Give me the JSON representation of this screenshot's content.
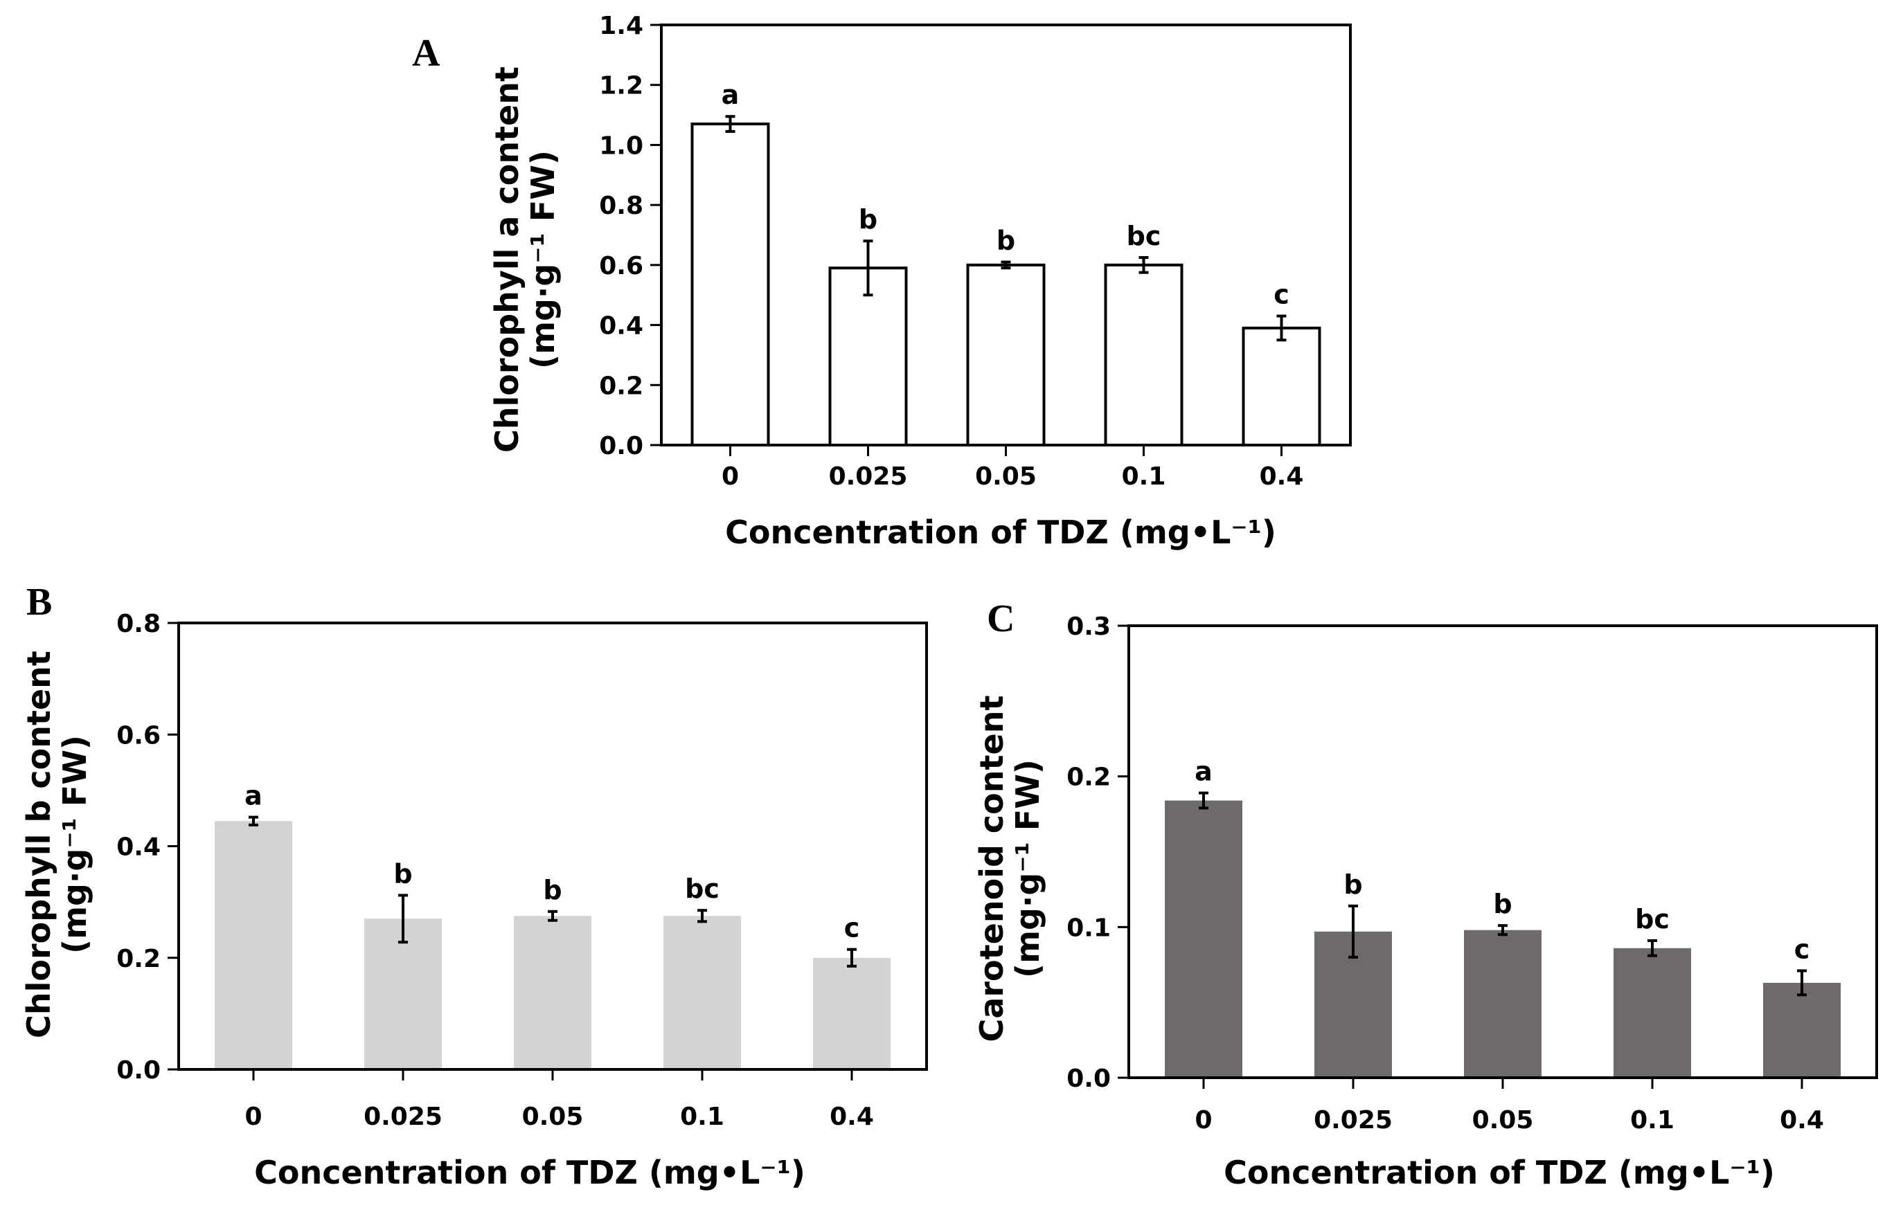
{
  "chart_data": [
    {
      "type": "bar",
      "panel": "A",
      "categories": [
        "0",
        "0.025",
        "0.05",
        "0.1",
        "0.4"
      ],
      "values": [
        1.07,
        0.59,
        0.6,
        0.6,
        0.39
      ],
      "errors": [
        0.025,
        0.09,
        0.01,
        0.025,
        0.04
      ],
      "significance": [
        "a",
        "b",
        "b",
        "bc",
        "c"
      ],
      "ylabel_line1": "Chlorophyll a content",
      "ylabel_line2": "(mg·g⁻¹ FW)",
      "xlabel": "Concentration of TDZ (mg•L⁻¹)",
      "ylim": [
        0,
        1.4
      ],
      "yticks": [
        "0.0",
        "0.2",
        "0.4",
        "0.6",
        "0.8",
        "1.0",
        "1.2",
        "1.4"
      ],
      "bar_color": "#ffffff",
      "bar_stroke": "#000000"
    },
    {
      "type": "bar",
      "panel": "B",
      "categories": [
        "0",
        "0.025",
        "0.05",
        "0.1",
        "0.4"
      ],
      "values": [
        0.445,
        0.27,
        0.275,
        0.275,
        0.2
      ],
      "errors": [
        0.007,
        0.042,
        0.008,
        0.01,
        0.015
      ],
      "significance": [
        "a",
        "b",
        "b",
        "bc",
        "c"
      ],
      "ylabel_line1": "Chlorophyll b content",
      "ylabel_line2": "(mg·g⁻¹ FW)",
      "xlabel": "Concentration of TDZ (mg•L⁻¹)",
      "ylim": [
        0,
        0.8
      ],
      "yticks": [
        "0.0",
        "0.2",
        "0.4",
        "0.6",
        "0.8"
      ],
      "bar_color": "#d3d3d3",
      "bar_stroke": "none"
    },
    {
      "type": "bar",
      "panel": "C",
      "categories": [
        "0",
        "0.025",
        "0.05",
        "0.1",
        "0.4"
      ],
      "values": [
        0.184,
        0.097,
        0.098,
        0.086,
        0.063
      ],
      "errors": [
        0.005,
        0.017,
        0.003,
        0.005,
        0.008
      ],
      "significance": [
        "a",
        "b",
        "b",
        "bc",
        "c"
      ],
      "ylabel_line1": "Carotenoid content",
      "ylabel_line2": "(mg·g⁻¹ FW)",
      "xlabel": "Concentration of TDZ (mg•L⁻¹)",
      "ylim": [
        0,
        0.3
      ],
      "yticks": [
        "0.0",
        "0.1",
        "0.2",
        "0.3"
      ],
      "bar_color": "#6e6a69",
      "bar_stroke": "none"
    }
  ]
}
